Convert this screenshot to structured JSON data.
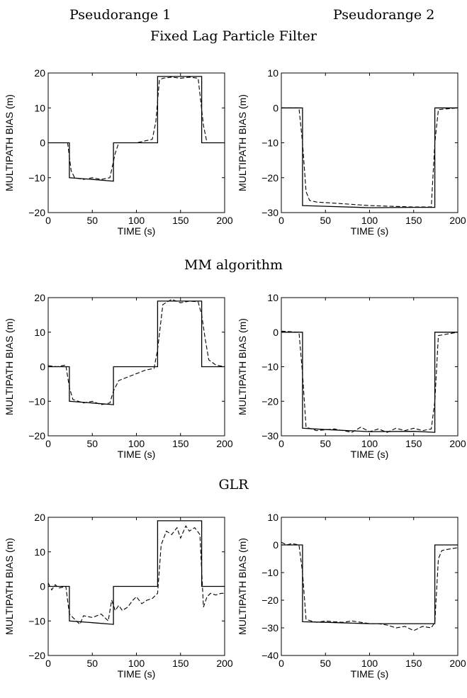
{
  "column_titles": [
    "Pseudorange 1",
    "Pseudorange 2"
  ],
  "group_titles": [
    "Fixed Lag Particle Filter",
    "MM algorithm",
    "GLR"
  ],
  "chart_data": [
    {
      "type": "line",
      "group": "Fixed Lag Particle Filter",
      "column": "Pseudorange 1",
      "xlabel": "TIME (s)",
      "ylabel": "MULTIPATH BIAS (m)",
      "xlim": [
        0,
        200
      ],
      "ylim": [
        -20,
        20
      ],
      "xticks": [
        0,
        50,
        100,
        150,
        200
      ],
      "yticks": [
        -20,
        -10,
        0,
        10,
        20
      ],
      "series": [
        {
          "style": "solid",
          "x": [
            0,
            24,
            24,
            50,
            74,
            74,
            124,
            124,
            174,
            174,
            200
          ],
          "y": [
            0,
            0,
            -10,
            -10.5,
            -11,
            0,
            0,
            19,
            19,
            0,
            0
          ]
        },
        {
          "style": "dashed",
          "x": [
            0,
            22,
            26,
            30,
            40,
            50,
            60,
            70,
            76,
            80,
            100,
            118,
            122,
            126,
            130,
            140,
            150,
            160,
            170,
            176,
            180,
            190,
            200
          ],
          "y": [
            0,
            0,
            -8,
            -10,
            -10.5,
            -10,
            -10.5,
            -10,
            -3,
            0,
            0,
            1,
            6,
            18,
            18.5,
            18.8,
            18.5,
            18.8,
            18.5,
            5,
            0,
            0,
            0
          ]
        }
      ]
    },
    {
      "type": "line",
      "group": "Fixed Lag Particle Filter",
      "column": "Pseudorange 2",
      "xlabel": "TIME (s)",
      "ylabel": "MULTIPATH BIAS (m)",
      "xlim": [
        0,
        200
      ],
      "ylim": [
        -30,
        10
      ],
      "xticks": [
        0,
        50,
        100,
        150,
        200
      ],
      "yticks": [
        -30,
        -20,
        -10,
        0,
        10
      ],
      "series": [
        {
          "style": "solid",
          "x": [
            0,
            24,
            24,
            50,
            100,
            150,
            174,
            174,
            200
          ],
          "y": [
            0,
            0,
            -28,
            -28.2,
            -28.6,
            -28.5,
            -28.5,
            0,
            0
          ]
        },
        {
          "style": "dashed",
          "x": [
            0,
            20,
            24,
            28,
            32,
            40,
            60,
            100,
            150,
            170,
            174,
            178,
            200
          ],
          "y": [
            0,
            0,
            -10,
            -24,
            -26.5,
            -27,
            -27.3,
            -28,
            -28.4,
            -28.4,
            -10,
            -0.5,
            0
          ]
        }
      ]
    },
    {
      "type": "line",
      "group": "MM algorithm",
      "column": "Pseudorange 1",
      "xlabel": "TIME (s)",
      "ylabel": "MULTIPATH BIAS (m)",
      "xlim": [
        0,
        200
      ],
      "ylim": [
        -20,
        20
      ],
      "xticks": [
        0,
        50,
        100,
        150,
        200
      ],
      "yticks": [
        -20,
        -10,
        0,
        10,
        20
      ],
      "series": [
        {
          "style": "solid",
          "x": [
            0,
            24,
            24,
            50,
            74,
            74,
            124,
            124,
            174,
            174,
            200
          ],
          "y": [
            0,
            0,
            -10,
            -10.5,
            -11,
            0,
            0,
            19,
            19,
            0,
            0
          ]
        },
        {
          "style": "dashed",
          "x": [
            0,
            10,
            20,
            24,
            28,
            40,
            50,
            60,
            70,
            74,
            80,
            90,
            100,
            110,
            120,
            124,
            130,
            140,
            150,
            160,
            170,
            174,
            178,
            182,
            190,
            200
          ],
          "y": [
            0.3,
            0,
            0.5,
            -6,
            -9.5,
            -10.5,
            -10,
            -11,
            -10.5,
            -7,
            -4,
            -3,
            -2,
            -1,
            -0.5,
            5,
            18,
            19.5,
            18.5,
            19,
            18.8,
            15,
            8,
            2,
            0.5,
            0
          ]
        }
      ]
    },
    {
      "type": "line",
      "group": "MM algorithm",
      "column": "Pseudorange 2",
      "xlabel": "TIME (s)",
      "ylabel": "MULTIPATH BIAS (m)",
      "xlim": [
        0,
        200
      ],
      "ylim": [
        -30,
        10
      ],
      "xticks": [
        0,
        50,
        100,
        150,
        200
      ],
      "yticks": [
        -30,
        -20,
        -10,
        0,
        10
      ],
      "series": [
        {
          "style": "solid",
          "x": [
            0,
            24,
            24,
            50,
            100,
            150,
            174,
            174,
            200
          ],
          "y": [
            0,
            0,
            -27.8,
            -28.2,
            -28.8,
            -28.7,
            -29,
            0,
            0
          ]
        },
        {
          "style": "dashed",
          "x": [
            0,
            20,
            24,
            28,
            40,
            60,
            80,
            90,
            100,
            110,
            120,
            130,
            140,
            150,
            160,
            170,
            174,
            178,
            200
          ],
          "y": [
            0.3,
            0,
            -12,
            -27.5,
            -28.5,
            -28,
            -29,
            -27.5,
            -28.8,
            -28,
            -29,
            -27.8,
            -28.5,
            -27.8,
            -28.5,
            -28,
            -20,
            -1,
            0
          ]
        }
      ]
    },
    {
      "type": "line",
      "group": "GLR",
      "column": "Pseudorange 1",
      "xlabel": "TIME (s)",
      "ylabel": "MULTIPATH BIAS (m)",
      "xlim": [
        0,
        200
      ],
      "ylim": [
        -20,
        20
      ],
      "xticks": [
        0,
        50,
        100,
        150,
        200
      ],
      "yticks": [
        -20,
        -10,
        0,
        10,
        20
      ],
      "series": [
        {
          "style": "solid",
          "x": [
            0,
            24,
            24,
            50,
            74,
            74,
            124,
            124,
            174,
            174,
            200
          ],
          "y": [
            0,
            0,
            -10,
            -10.5,
            -11,
            0,
            0,
            19,
            19,
            0,
            0
          ]
        },
        {
          "style": "dashed",
          "x": [
            0,
            4,
            8,
            12,
            20,
            24,
            30,
            36,
            40,
            50,
            60,
            68,
            72,
            76,
            80,
            84,
            90,
            96,
            100,
            106,
            112,
            118,
            124,
            128,
            134,
            140,
            146,
            150,
            156,
            160,
            166,
            172,
            176,
            180,
            184,
            190,
            196,
            200
          ],
          "y": [
            1,
            -1,
            0.5,
            -0.5,
            0,
            -8,
            -9.5,
            -11,
            -8.5,
            -9,
            -8,
            -10,
            -4,
            -7,
            -5.5,
            -7,
            -6,
            -4,
            -3,
            -5,
            -4,
            -3.5,
            -2,
            12,
            16,
            15,
            17,
            14,
            17.5,
            16,
            17,
            15,
            -6,
            -3,
            -2,
            -2.5,
            -2,
            -2
          ]
        }
      ]
    },
    {
      "type": "line",
      "group": "GLR",
      "column": "Pseudorange 2",
      "xlabel": "TIME (s)",
      "ylabel": "MULTIPATH BIAS (m)",
      "xlim": [
        0,
        200
      ],
      "ylim": [
        -40,
        10
      ],
      "xticks": [
        0,
        50,
        100,
        150,
        200
      ],
      "yticks": [
        -40,
        -30,
        -20,
        -10,
        0,
        10
      ],
      "series": [
        {
          "style": "solid",
          "x": [
            0,
            24,
            24,
            50,
            100,
            150,
            174,
            174,
            200
          ],
          "y": [
            0,
            0,
            -27.8,
            -28,
            -28.5,
            -28.5,
            -28.5,
            0,
            0
          ]
        },
        {
          "style": "dashed",
          "x": [
            0,
            6,
            12,
            20,
            24,
            28,
            40,
            50,
            60,
            70,
            80,
            90,
            100,
            110,
            120,
            130,
            140,
            150,
            160,
            170,
            174,
            178,
            182,
            190,
            200
          ],
          "y": [
            1,
            0,
            0.5,
            0,
            -10,
            -27,
            -28,
            -27.5,
            -27.8,
            -28,
            -27.5,
            -28,
            -28.5,
            -28.5,
            -29,
            -30,
            -29.5,
            -31,
            -29.5,
            -30,
            -28,
            -5,
            -2,
            -1.5,
            -1
          ]
        }
      ]
    }
  ]
}
